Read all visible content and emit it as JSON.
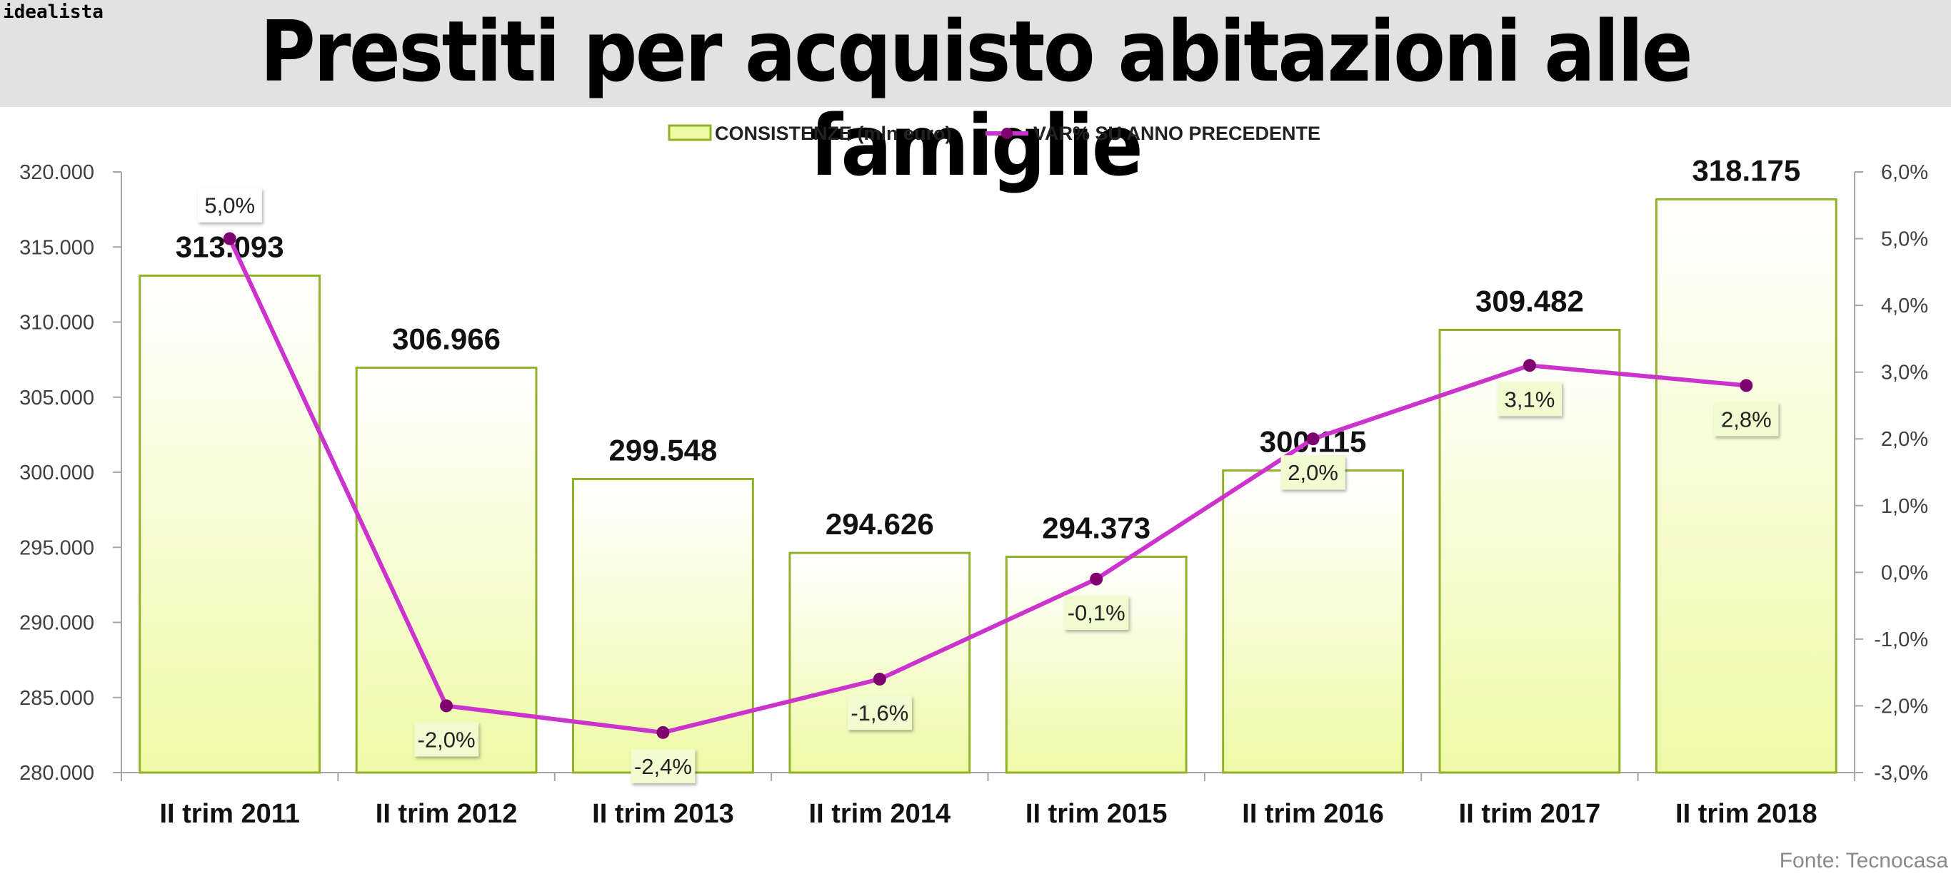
{
  "header": {
    "brand": "idealista",
    "title": "Prestiti per acquisto abitazioni alle famiglie"
  },
  "source": "Fonte: Tecnocasa",
  "chart_data": {
    "type": "bar+line",
    "title": "Prestiti per acquisto abitazioni alle famiglie",
    "categories": [
      "II trim 2011",
      "II trim 2012",
      "II trim 2013",
      "II trim 2014",
      "II trim 2015",
      "II trim 2016",
      "II trim 2017",
      "II trim 2018"
    ],
    "series": [
      {
        "name": "CONSISTENZE (mln euro)",
        "type": "bar",
        "axis": "left",
        "values": [
          313093,
          306966,
          299548,
          294626,
          294373,
          300115,
          309482,
          318175
        ],
        "labels": [
          "313.093",
          "306.966",
          "299.548",
          "294.626",
          "294.373",
          "300.115",
          "309.482",
          "318.175"
        ]
      },
      {
        "name": "VAR% SU ANNO PRECEDENTE",
        "type": "line",
        "axis": "right",
        "values": [
          5.0,
          -2.0,
          -2.4,
          -1.6,
          -0.1,
          2.0,
          3.1,
          2.8
        ],
        "labels": [
          "5,0%",
          "-2,0%",
          "-2,4%",
          "-1,6%",
          "-0,1%",
          "2,0%",
          "3,1%",
          "2,8%"
        ]
      }
    ],
    "y_left": {
      "ylim": [
        280000,
        320000
      ],
      "ticks": [
        "280.000",
        "285.000",
        "290.000",
        "295.000",
        "300.000",
        "305.000",
        "310.000",
        "315.000",
        "320.000"
      ]
    },
    "y_right": {
      "ylim": [
        -3.0,
        6.0
      ],
      "ticks": [
        "-3,0%",
        "-2,0%",
        "-1,0%",
        "0,0%",
        "1,0%",
        "2,0%",
        "3,0%",
        "4,0%",
        "5,0%",
        "6,0%"
      ]
    },
    "legend_position": "top-center",
    "grid": false,
    "colors": {
      "bar_top": "#ffffff",
      "bar_bottom": "#eefaa6",
      "bar_border": "#8fb228",
      "line": "#cc33cc",
      "marker": "#7f006f",
      "axis": "#a6a6a6"
    }
  }
}
